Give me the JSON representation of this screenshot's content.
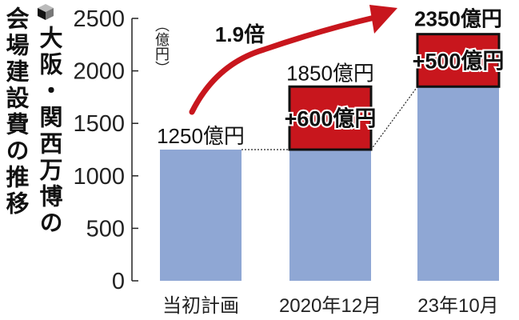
{
  "chart_data": {
    "type": "bar",
    "title": "大阪・関西万博の会場建設費の推移",
    "title_lines": [
      "大阪・関西万博の",
      "会場建設費の推移"
    ],
    "unit_label": "（億円）",
    "categories": [
      "当初計画",
      "2020年12月",
      "23年10月"
    ],
    "series": [
      {
        "values": [
          1250,
          1250,
          1850
        ]
      },
      {
        "values": [
          0,
          600,
          500
        ]
      }
    ],
    "totals": [
      1250,
      1850,
      2350
    ],
    "total_labels": [
      "1250億円",
      "1850億円",
      "2350億円"
    ],
    "increase_labels": [
      "",
      "+600億円",
      "+500億円"
    ],
    "annotation": "1.9倍",
    "yticks": [
      0,
      500,
      1000,
      1500,
      2000,
      2500
    ],
    "ylim": [
      0,
      2500
    ],
    "stacked": true,
    "grid": false,
    "colors": {
      "base": "#8fa7d4",
      "increase": "#c8161d",
      "arrow": "#c8161d",
      "text": "#111111"
    }
  }
}
